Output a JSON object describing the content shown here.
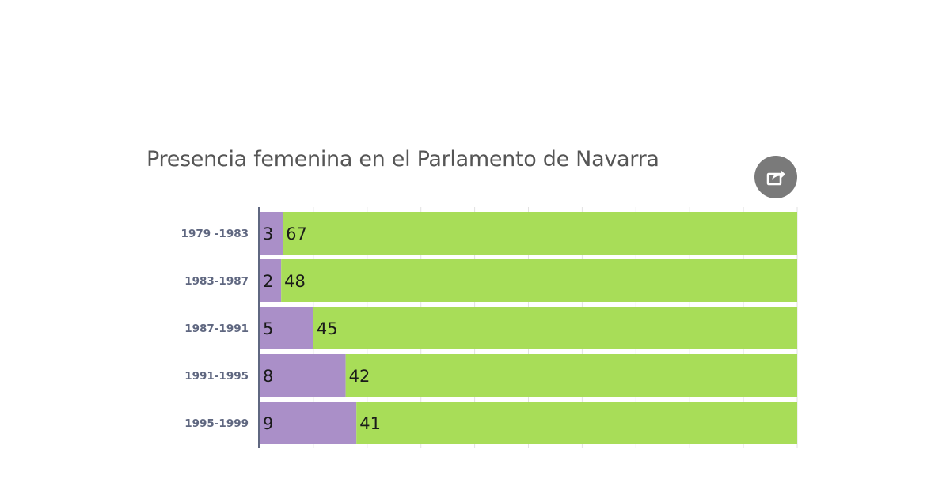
{
  "chart_data": {
    "type": "bar",
    "orientation": "horizontal",
    "stacked": true,
    "percent_stacked": true,
    "title": "Presencia femenina en el Parlamento de Navarra",
    "categories": [
      "1979 -1983",
      "1983-1987",
      "1987-1991",
      "1991-1995",
      "1995-1999"
    ],
    "series": [
      {
        "values": [
          3,
          2,
          5,
          8,
          9
        ]
      },
      {
        "values": [
          67,
          48,
          45,
          42,
          41
        ]
      }
    ],
    "colors": [
      "#aa8fc8",
      "#a8dd58"
    ],
    "xlim": [
      0,
      100
    ],
    "grid": true,
    "legend": "none"
  },
  "share": {
    "icon": "share-icon",
    "color": "#7a7a7a"
  },
  "colors": {
    "title": "#555555",
    "category_label": "#5f6780",
    "axis_line": "#5f6780",
    "grid": "#e2e2e2",
    "value_label": "#1a1a1a"
  }
}
